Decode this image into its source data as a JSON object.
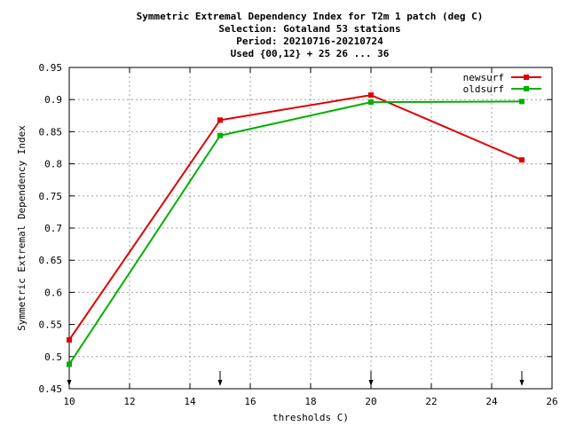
{
  "chart_data": {
    "type": "line",
    "title_lines": [
      "Symmetric Extremal Dependency Index  for T2m 1 patch (deg C)",
      "Selection: Gotaland     53 stations",
      "Period: 20210716-20210724",
      "Used {00,12} + 25 26 ... 36"
    ],
    "xlabel": "thresholds C)",
    "ylabel": "Symmetric Extremal Dependency Index",
    "xlim": [
      10,
      26
    ],
    "ylim": [
      0.45,
      0.95
    ],
    "xticks": [
      10,
      12,
      14,
      16,
      18,
      20,
      22,
      24,
      26
    ],
    "yticks": [
      0.45,
      0.5,
      0.55,
      0.6,
      0.65,
      0.7,
      0.75,
      0.8,
      0.85,
      0.9,
      0.95
    ],
    "grid": true,
    "legend_position": "top-right",
    "threshold_markers": [
      10,
      15,
      20,
      25
    ],
    "x": [
      10,
      15,
      20,
      25
    ],
    "series": [
      {
        "name": "newsurf",
        "color": "#e00000",
        "values": [
          0.526,
          0.868,
          0.907,
          0.806
        ]
      },
      {
        "name": "oldsurf",
        "color": "#00b000",
        "values": [
          0.488,
          0.844,
          0.896,
          0.897
        ]
      }
    ]
  }
}
